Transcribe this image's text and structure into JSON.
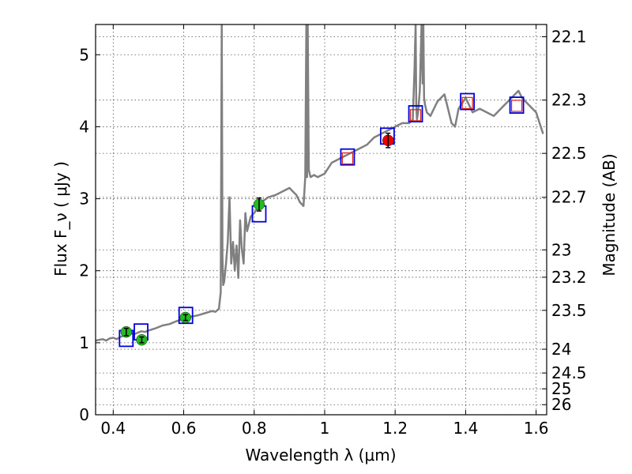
{
  "chart_data": {
    "type": "line",
    "title": "",
    "xlabel": "Wavelength  λ (μm)",
    "ylabel": "Flux  F_ν  ( μJy )",
    "y2label": "Magnitude (AB)",
    "xlim": [
      0.35,
      1.63
    ],
    "ylim": [
      0,
      5.42
    ],
    "grid": true,
    "x_ticks": [
      0.4,
      0.6,
      0.8,
      1.0,
      1.2,
      1.4,
      1.6
    ],
    "x_tick_labels": [
      "0.4",
      "0.6",
      "0.8",
      "1",
      "1.2",
      "1.4",
      "1.6"
    ],
    "y_ticks": [
      0,
      1,
      2,
      3,
      4,
      5
    ],
    "y_tick_labels": [
      "0",
      "1",
      "2",
      "3",
      "4",
      "5"
    ],
    "right_ticks": [
      {
        "flux": 5.25,
        "label": "22.1"
      },
      {
        "flux": 4.37,
        "label": "22.3"
      },
      {
        "flux": 3.63,
        "label": "22.5"
      },
      {
        "flux": 3.02,
        "label": "22.7"
      },
      {
        "flux": 2.29,
        "label": "23"
      },
      {
        "flux": 1.91,
        "label": "23.2"
      },
      {
        "flux": 1.45,
        "label": "23.5"
      },
      {
        "flux": 0.91,
        "label": "24"
      },
      {
        "flux": 0.58,
        "label": "24.5"
      },
      {
        "flux": 0.36,
        "label": "25"
      },
      {
        "flux": 0.14,
        "label": "26"
      }
    ],
    "series": [
      {
        "color": "#808080",
        "x": [
          0.35,
          0.36,
          0.37,
          0.38,
          0.39,
          0.4,
          0.41,
          0.42,
          0.43,
          0.44,
          0.45,
          0.46,
          0.47,
          0.48,
          0.49,
          0.5,
          0.52,
          0.54,
          0.56,
          0.58,
          0.6,
          0.62,
          0.64,
          0.66,
          0.68,
          0.69,
          0.7,
          0.705,
          0.708,
          0.71,
          0.712,
          0.715,
          0.72,
          0.725,
          0.73,
          0.735,
          0.74,
          0.745,
          0.75,
          0.755,
          0.76,
          0.765,
          0.77,
          0.775,
          0.78,
          0.79,
          0.8,
          0.82,
          0.84,
          0.86,
          0.88,
          0.9,
          0.91,
          0.92,
          0.93,
          0.94,
          0.945,
          0.948,
          0.95,
          0.952,
          0.955,
          0.96,
          0.97,
          0.98,
          1.0,
          1.02,
          1.04,
          1.06,
          1.08,
          1.1,
          1.12,
          1.14,
          1.16,
          1.18,
          1.2,
          1.22,
          1.24,
          1.25,
          1.255,
          1.258,
          1.26,
          1.262,
          1.265,
          1.27,
          1.275,
          1.278,
          1.28,
          1.282,
          1.285,
          1.29,
          1.3,
          1.32,
          1.34,
          1.36,
          1.37,
          1.38,
          1.4,
          1.42,
          1.44,
          1.46,
          1.48,
          1.5,
          1.52,
          1.54,
          1.55,
          1.56,
          1.58,
          1.6,
          1.62
        ],
        "y": [
          1.03,
          1.04,
          1.05,
          1.03,
          1.06,
          1.07,
          1.05,
          1.08,
          1.1,
          1.12,
          1.13,
          1.12,
          1.14,
          1.16,
          1.15,
          1.17,
          1.2,
          1.24,
          1.26,
          1.3,
          1.33,
          1.36,
          1.38,
          1.41,
          1.44,
          1.43,
          1.47,
          1.7,
          5.42,
          2.2,
          1.8,
          1.85,
          2.1,
          2.4,
          3.02,
          2.1,
          2.4,
          2.0,
          2.35,
          1.9,
          2.7,
          2.3,
          2.1,
          2.8,
          2.55,
          2.75,
          2.8,
          2.95,
          3.02,
          3.05,
          3.1,
          3.15,
          3.1,
          3.05,
          2.95,
          2.9,
          3.3,
          5.42,
          3.3,
          5.42,
          3.4,
          3.3,
          3.33,
          3.3,
          3.35,
          3.5,
          3.55,
          3.6,
          3.65,
          3.7,
          3.75,
          3.85,
          3.9,
          3.95,
          4.0,
          4.05,
          4.05,
          4.1,
          4.8,
          5.42,
          4.3,
          4.1,
          4.2,
          4.5,
          5.42,
          4.6,
          5.42,
          4.4,
          4.3,
          4.2,
          4.15,
          4.35,
          4.45,
          4.05,
          4.0,
          4.25,
          4.4,
          4.2,
          4.25,
          4.2,
          4.15,
          4.25,
          4.35,
          4.45,
          4.5,
          4.4,
          4.3,
          4.2,
          3.9
        ]
      }
    ],
    "model_boxes": [
      {
        "x": 0.437,
        "y": 1.06
      },
      {
        "x": 0.479,
        "y": 1.15
      },
      {
        "x": 0.606,
        "y": 1.38
      },
      {
        "x": 0.814,
        "y": 2.79
      },
      {
        "x": 1.065,
        "y": 3.58
      },
      {
        "x": 1.178,
        "y": 3.87
      },
      {
        "x": 1.258,
        "y": 4.18
      },
      {
        "x": 1.405,
        "y": 4.35
      },
      {
        "x": 1.545,
        "y": 4.3
      }
    ],
    "detections": [
      {
        "x": 0.437,
        "y": 1.15,
        "err": 0.05,
        "color": "#22bb22"
      },
      {
        "x": 0.481,
        "y": 1.04,
        "err": 0.04,
        "color": "#22bb22"
      },
      {
        "x": 0.605,
        "y": 1.35,
        "err": 0.04,
        "color": "#22bb22"
      },
      {
        "x": 0.814,
        "y": 2.92,
        "err": 0.09,
        "color": "#22bb22"
      },
      {
        "x": 1.18,
        "y": 3.81,
        "err": 0.1,
        "color": "#ee0000"
      }
    ],
    "upper_limits": [
      {
        "x": 1.065,
        "y": 3.56
      },
      {
        "x": 1.258,
        "y": 4.16
      },
      {
        "x": 1.405,
        "y": 4.33
      },
      {
        "x": 1.545,
        "y": 4.29
      }
    ]
  }
}
